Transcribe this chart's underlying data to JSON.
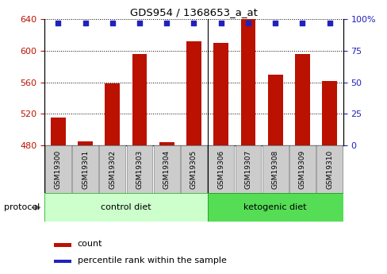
{
  "title": "GDS954 / 1368653_a_at",
  "samples": [
    "GSM19300",
    "GSM19301",
    "GSM19302",
    "GSM19303",
    "GSM19304",
    "GSM19305",
    "GSM19306",
    "GSM19307",
    "GSM19308",
    "GSM19309",
    "GSM19310"
  ],
  "counts": [
    515,
    485,
    558,
    596,
    484,
    612,
    610,
    640,
    570,
    596,
    562
  ],
  "percentile_ranks": [
    97,
    97,
    97,
    97,
    97,
    97,
    97,
    97,
    97,
    97,
    97
  ],
  "ylim_left": [
    480,
    640
  ],
  "ylim_right": [
    0,
    100
  ],
  "yticks_left": [
    480,
    520,
    560,
    600,
    640
  ],
  "yticks_right": [
    0,
    25,
    50,
    75,
    100
  ],
  "groups": [
    {
      "label": "control diet",
      "n": 6,
      "color": "#ccffcc",
      "border": "#44bb44"
    },
    {
      "label": "ketogenic diet",
      "n": 5,
      "color": "#55dd55",
      "border": "#22aa22"
    }
  ],
  "bar_color": "#bb1100",
  "dot_color": "#2222bb",
  "bar_width": 0.55,
  "label_count": "count",
  "label_percentile": "percentile rank within the sample",
  "protocol_label": "protocol",
  "separator_index": 5.5
}
